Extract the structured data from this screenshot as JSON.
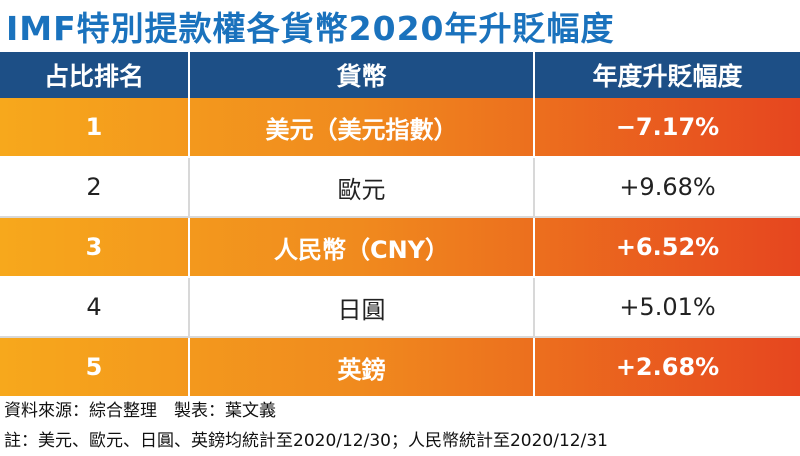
{
  "header": {
    "title": "IMF特別提款權各貨幣2020年升貶幅度"
  },
  "table": {
    "columns": [
      "占比排名",
      "貨幣",
      "年度升貶幅度"
    ],
    "rows": [
      [
        "1",
        "美元（美元指數）",
        "−7.17%"
      ],
      [
        "2",
        "歐元",
        "+9.68%"
      ],
      [
        "3",
        "人民幣（CNY）",
        "+6.52%"
      ],
      [
        "4",
        "日圓",
        "+5.01%"
      ],
      [
        "5",
        "英鎊",
        "+2.68%"
      ]
    ]
  },
  "footer": {
    "source": "資料來源：綜合整理　製表：葉文義",
    "note": "註：美元、歐元、日圓、英鎊均統計至2020/12/30；人民幣統計至2020/12/31"
  }
}
